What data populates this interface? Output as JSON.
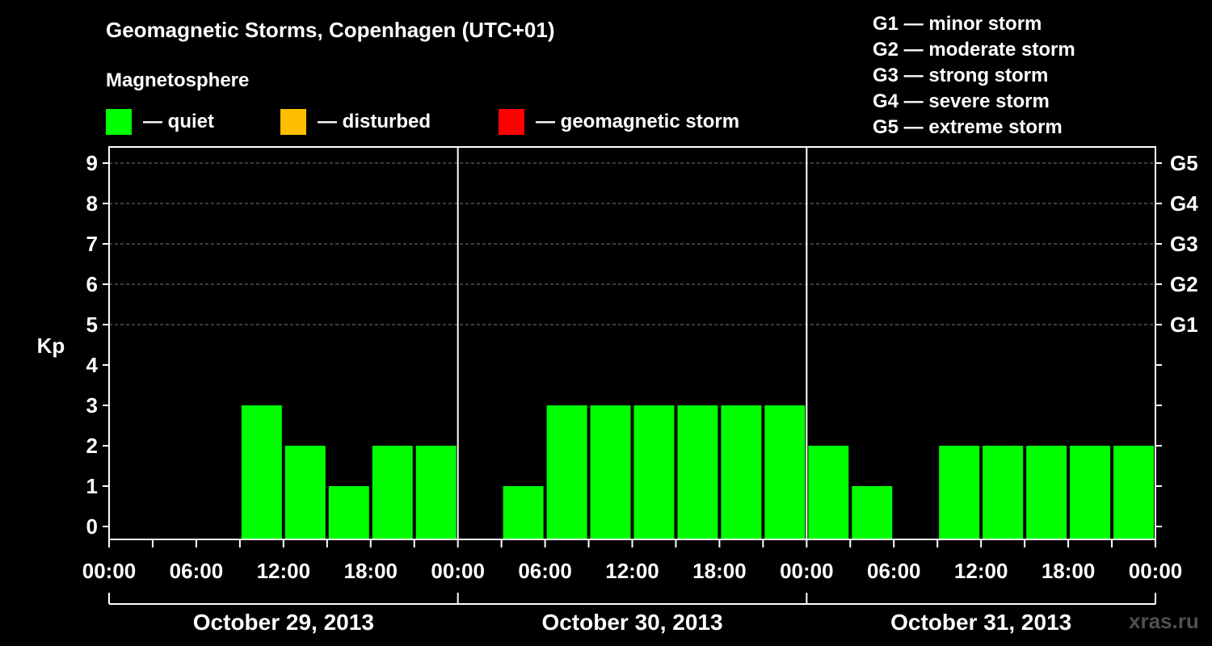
{
  "header": {
    "title": "Geomagnetic Storms, Copenhagen (UTC+01)",
    "magnetosphere_label": "Magnetosphere"
  },
  "legend": [
    {
      "label": "— quiet",
      "color": "#00ff00"
    },
    {
      "label": "— disturbed",
      "color": "#ffbf00"
    },
    {
      "label": "— geomagnetic storm",
      "color": "#ff0000"
    }
  ],
  "storm_scale": [
    "G1 — minor storm",
    "G2 — moderate storm",
    "G3 — strong storm",
    "G4 — severe storm",
    "G5 — extreme storm"
  ],
  "watermark": "xras.ru",
  "chart_data": {
    "type": "bar",
    "ylabel": "Kp",
    "ylim": [
      0,
      9
    ],
    "y_ticks": [
      "0",
      "1",
      "2",
      "3",
      "4",
      "5",
      "6",
      "7",
      "8",
      "9"
    ],
    "right_axis_labels": [
      {
        "kp": 5,
        "label": "G1"
      },
      {
        "kp": 6,
        "label": "G2"
      },
      {
        "kp": 7,
        "label": "G3"
      },
      {
        "kp": 8,
        "label": "G4"
      },
      {
        "kp": 9,
        "label": "G5"
      }
    ],
    "x_tick_labels": [
      "00:00",
      "06:00",
      "12:00",
      "18:00",
      "00:00",
      "06:00",
      "12:00",
      "18:00",
      "00:00",
      "06:00",
      "12:00",
      "18:00",
      "00:00"
    ],
    "days": [
      "October 29, 2013",
      "October 30, 2013",
      "October 31, 2013"
    ],
    "interval_hours": 3,
    "grid": "dashed horizontal at Kp 5–9",
    "series": [
      {
        "color": "#00ff00",
        "values": [
          0,
          0,
          0,
          3,
          2,
          1,
          2,
          2,
          0,
          1,
          3,
          3,
          3,
          3,
          3,
          3,
          2,
          1,
          0,
          2,
          2,
          2,
          2,
          2
        ]
      }
    ]
  }
}
